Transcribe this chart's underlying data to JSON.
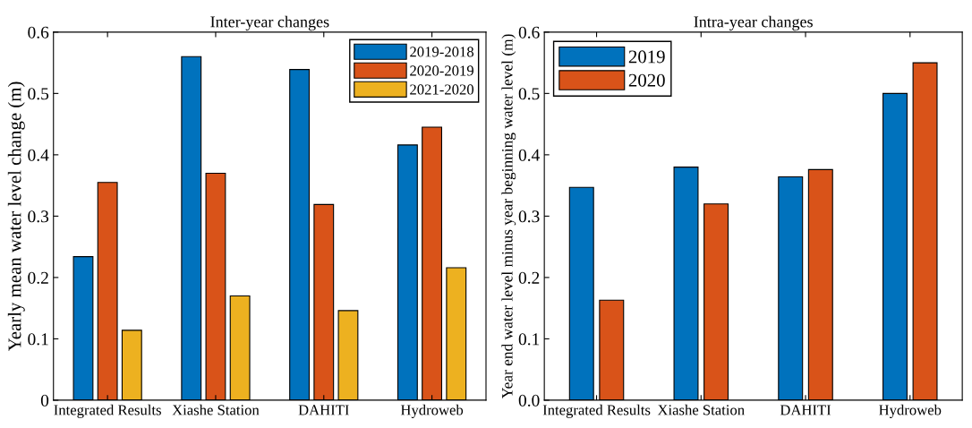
{
  "chart_data": [
    {
      "type": "bar",
      "title": "Inter-year changes",
      "ylabel": "Yearly mean water level change (m)",
      "categories": [
        "Integrated Results",
        "Xiashe Station",
        "DAHITI",
        "Hydroweb"
      ],
      "series": [
        {
          "name": "2019-2018",
          "color": "#0072bd",
          "values": [
            0.234,
            0.56,
            0.539,
            0.416
          ]
        },
        {
          "name": "2020-2019",
          "color": "#d95319",
          "values": [
            0.355,
            0.37,
            0.319,
            0.445
          ]
        },
        {
          "name": "2021-2020",
          "color": "#edb120",
          "values": [
            0.114,
            0.17,
            0.146,
            0.216
          ]
        }
      ],
      "ylim": [
        0,
        0.6
      ],
      "yticks": [
        0,
        0.1,
        0.2,
        0.3,
        0.4,
        0.5,
        0.6
      ],
      "grid": false,
      "legend": "top right"
    },
    {
      "type": "bar",
      "title": "Intra-year changes",
      "ylabel": "Year end water level minus year beginning water level (m)",
      "categories": [
        "Integrated Results",
        "Xiashe Station",
        "DAHITI",
        "Hydroweb"
      ],
      "series": [
        {
          "name": "2019",
          "color": "#0072bd",
          "values": [
            0.347,
            0.38,
            0.364,
            0.5
          ]
        },
        {
          "name": "2020",
          "color": "#d95319",
          "values": [
            0.163,
            0.32,
            0.376,
            0.55
          ]
        }
      ],
      "ylim": [
        0,
        0.6
      ],
      "yticks": [
        {
          "value": 0,
          "label": "0.0"
        },
        {
          "value": 0.1,
          "label": "0.1"
        },
        {
          "value": 0.2,
          "label": "0.2"
        },
        {
          "value": 0.3,
          "label": "0.3"
        },
        {
          "value": 0.4,
          "label": "0.4"
        },
        {
          "value": 0.5,
          "label": "0.5"
        },
        {
          "value": 0.6,
          "label": "0.6"
        }
      ],
      "grid": false,
      "legend": "top left"
    }
  ]
}
